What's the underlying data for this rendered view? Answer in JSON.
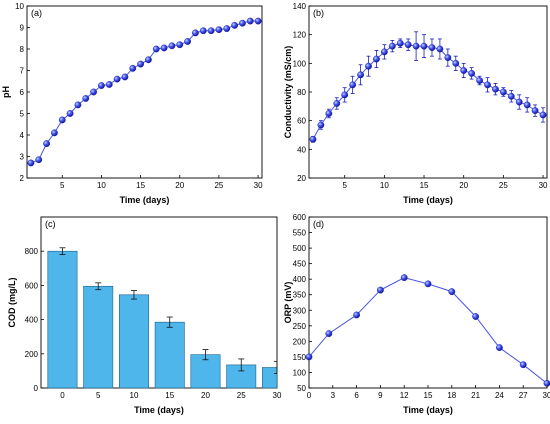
{
  "chart_data": [
    {
      "id": "a",
      "type": "line",
      "panel_label": "(a)",
      "xlabel": "Time (days)",
      "ylabel": "pH",
      "xlim": [
        0.5,
        30.5
      ],
      "ylim": [
        2,
        10
      ],
      "xticks": [
        5,
        10,
        15,
        20,
        25,
        30
      ],
      "yticks": [
        2,
        3,
        4,
        5,
        6,
        7,
        8,
        9,
        10
      ],
      "grid": false,
      "x": [
        1,
        2,
        3,
        4,
        5,
        6,
        7,
        8,
        9,
        10,
        11,
        12,
        13,
        14,
        15,
        16,
        17,
        18,
        19,
        20,
        21,
        22,
        23,
        24,
        25,
        26,
        27,
        28,
        29,
        30
      ],
      "y": [
        2.7,
        2.85,
        3.6,
        4.1,
        4.7,
        5.0,
        5.4,
        5.7,
        6.0,
        6.3,
        6.35,
        6.6,
        6.7,
        7.1,
        7.3,
        7.5,
        8.0,
        8.05,
        8.15,
        8.2,
        8.35,
        8.75,
        8.85,
        8.85,
        8.9,
        8.95,
        9.1,
        9.2,
        9.3,
        9.3
      ]
    },
    {
      "id": "b",
      "type": "line",
      "panel_label": "(b)",
      "xlabel": "Time (days)",
      "ylabel": "Conductivity (mS/cm)",
      "xlim": [
        0.5,
        30.5
      ],
      "ylim": [
        20,
        140
      ],
      "xticks": [
        5,
        10,
        15,
        20,
        25,
        30
      ],
      "yticks": [
        20,
        40,
        60,
        80,
        100,
        120,
        140
      ],
      "grid": false,
      "x": [
        1,
        2,
        3,
        4,
        5,
        6,
        7,
        8,
        9,
        10,
        11,
        12,
        13,
        14,
        15,
        16,
        17,
        18,
        19,
        20,
        21,
        22,
        23,
        24,
        25,
        26,
        27,
        28,
        29,
        30
      ],
      "y": [
        47,
        57,
        65,
        72,
        78,
        85,
        92,
        98,
        103,
        108,
        112,
        114,
        113,
        112,
        112,
        111,
        110,
        104,
        100,
        95,
        93,
        88,
        85,
        82,
        80,
        77,
        73,
        71,
        67,
        64
      ],
      "error": [
        2,
        3,
        3,
        4,
        5,
        6,
        7,
        7,
        6,
        5,
        4,
        3,
        4,
        10,
        8,
        6,
        7,
        6,
        5,
        5,
        4,
        3,
        5,
        4,
        3,
        4,
        5,
        5,
        4,
        5
      ]
    },
    {
      "id": "c",
      "type": "bar",
      "panel_label": "(c)",
      "xlabel": "Time (days)",
      "ylabel": "COD (mg/L)",
      "xlim": [
        -3,
        30
      ],
      "ylim": [
        0,
        1000
      ],
      "xticks": [
        0,
        5,
        10,
        15,
        20,
        25,
        30
      ],
      "yticks": [
        0,
        200,
        400,
        600,
        800
      ],
      "grid": false,
      "categories": [
        0,
        5,
        10,
        15,
        20,
        25,
        30
      ],
      "values": [
        800,
        595,
        545,
        385,
        195,
        135,
        120
      ],
      "error": [
        20,
        20,
        25,
        30,
        30,
        35,
        35
      ]
    },
    {
      "id": "d",
      "type": "line",
      "panel_label": "(d)",
      "xlabel": "Time (days)",
      "ylabel": "ORP (mV)",
      "xlim": [
        0,
        30
      ],
      "ylim": [
        50,
        600
      ],
      "xticks": [
        0,
        3,
        6,
        9,
        12,
        15,
        18,
        21,
        24,
        27,
        30
      ],
      "yticks": [
        50,
        100,
        150,
        200,
        250,
        300,
        350,
        400,
        450,
        500,
        550,
        600
      ],
      "grid": false,
      "x": [
        0,
        2.5,
        6,
        9,
        12,
        15,
        18,
        21,
        24,
        27,
        30
      ],
      "y": [
        150,
        225,
        285,
        365,
        405,
        385,
        360,
        280,
        180,
        125,
        65
      ]
    }
  ],
  "colors": {
    "line": "#4a57e0",
    "marker_light": "#9cb4ff",
    "marker_dark": "#1a1fb5",
    "bar_fill": "#4fb6ec",
    "bar_stroke": "#1b5e86"
  }
}
